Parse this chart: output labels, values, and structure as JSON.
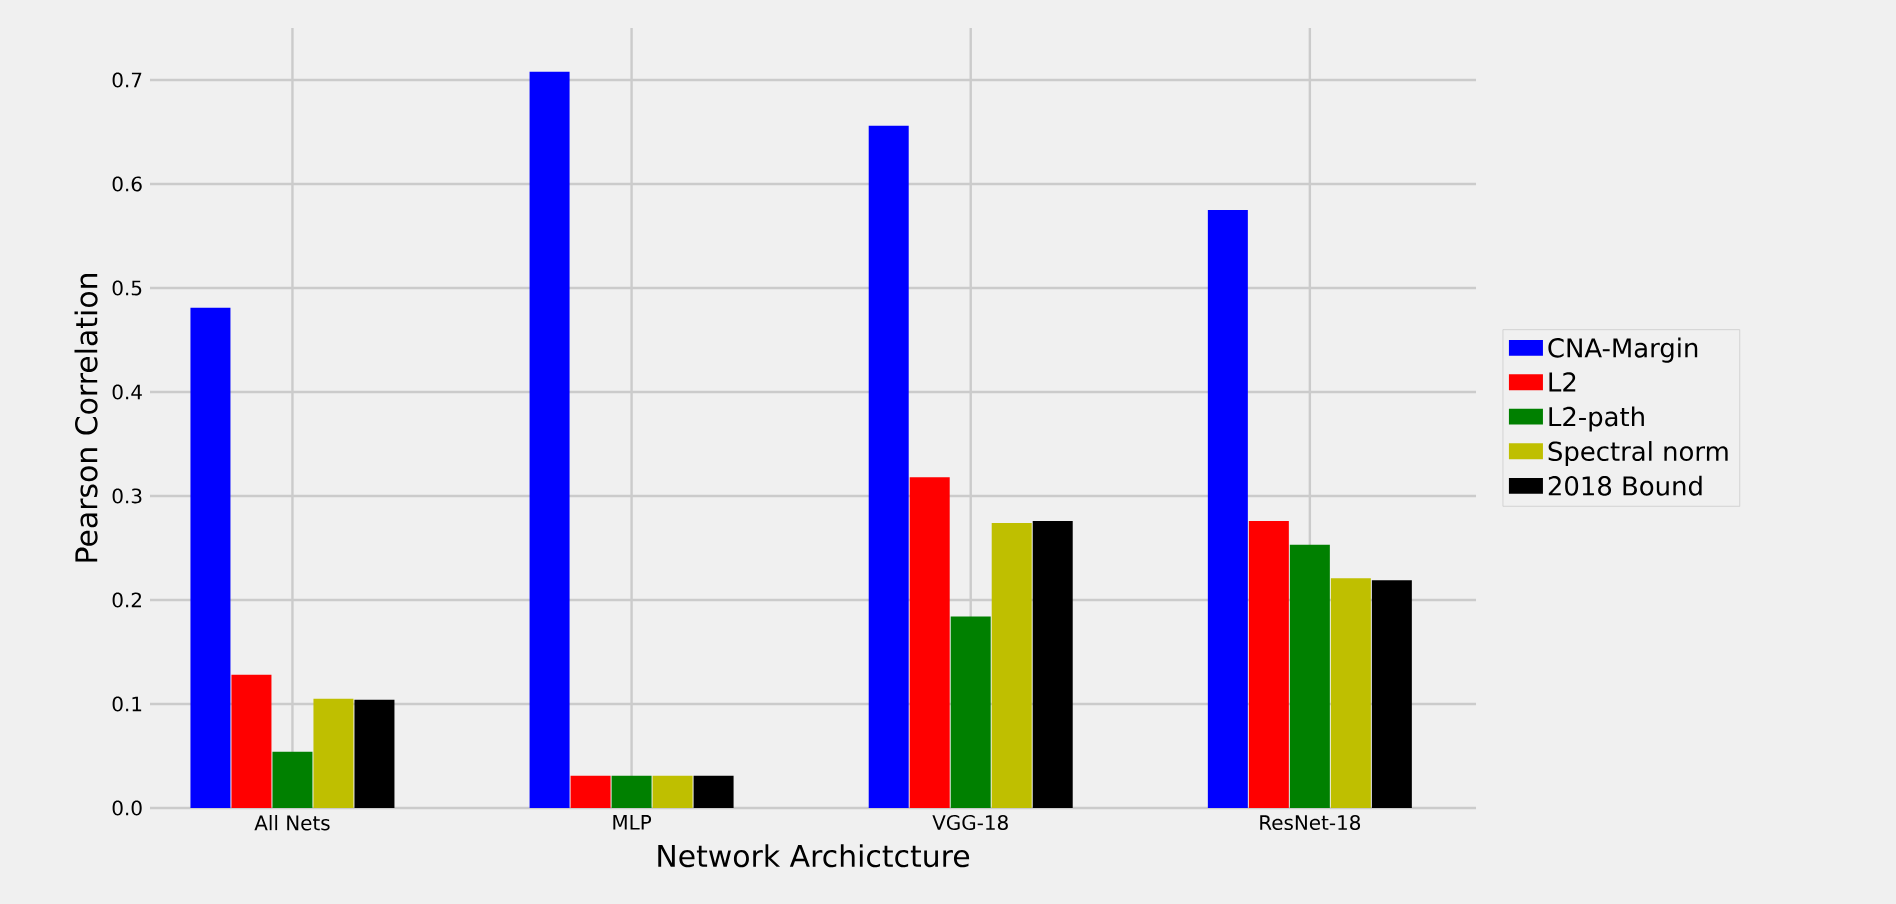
{
  "chart_data": {
    "type": "bar",
    "xlabel": "Network Archictcture",
    "ylabel": "Pearson Correlation",
    "categories": [
      "All Nets",
      "MLP",
      "VGG-18",
      "ResNet-18"
    ],
    "series": [
      {
        "name": "CNA-Margin",
        "color": "#0000ff",
        "values": [
          0.481,
          0.708,
          0.656,
          0.575
        ]
      },
      {
        "name": "L2",
        "color": "#ff0000",
        "values": [
          0.128,
          0.031,
          0.318,
          0.276
        ]
      },
      {
        "name": "L2-path",
        "color": "#008000",
        "values": [
          0.054,
          0.031,
          0.184,
          0.253
        ]
      },
      {
        "name": "Spectral norm",
        "color": "#bfbf00",
        "values": [
          0.105,
          0.031,
          0.274,
          0.221
        ]
      },
      {
        "name": "2018 Bound",
        "color": "#000000",
        "values": [
          0.104,
          0.031,
          0.276,
          0.219
        ]
      }
    ],
    "ylim": [
      0,
      0.75
    ],
    "yticks": [
      {
        "value": 0,
        "label": "0.0"
      },
      0.1,
      0.2,
      0.3,
      0.4,
      0.5,
      0.6,
      0.7
    ],
    "grid": true,
    "legend": "right"
  }
}
